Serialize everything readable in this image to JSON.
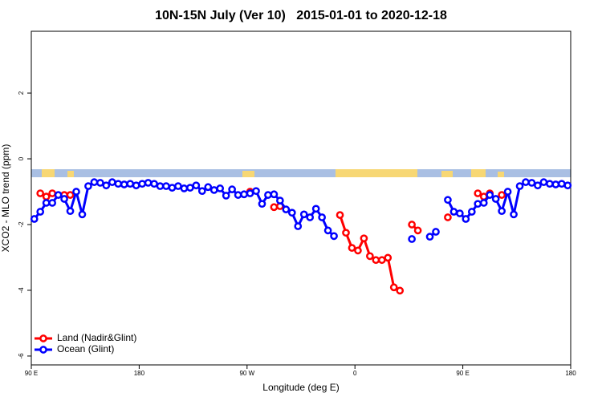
{
  "chart_data": {
    "type": "line",
    "title": "10N-15N July (Ver 10)   2015-01-01 to 2020-12-18",
    "x_label": "Longitude (deg E)",
    "y_label": "XCO2 - MLO trend (ppm)",
    "x": [
      92.5,
      97.5,
      102.5,
      107.5,
      112.5,
      117.5,
      122.5,
      127.5,
      132.5,
      137.5,
      142.5,
      147.5,
      152.5,
      157.5,
      162.5,
      167.5,
      172.5,
      177.5,
      182.5,
      187.5,
      192.5,
      197.5,
      202.5,
      207.5,
      212.5,
      217.5,
      222.5,
      227.5,
      232.5,
      237.5,
      242.5,
      247.5,
      252.5,
      257.5,
      262.5,
      267.5,
      272.5,
      277.5,
      282.5,
      287.5,
      292.5,
      297.5,
      302.5,
      307.5,
      312.5,
      317.5,
      322.5,
      327.5,
      332.5,
      337.5,
      342.5,
      347.5,
      352.5,
      357.5,
      362.5,
      367.5,
      372.5,
      377.5,
      382.5,
      387.5,
      392.5,
      397.5,
      402.5,
      407.5,
      412.5,
      417.5,
      422.5,
      427.5,
      432.5,
      437.5,
      442.5,
      447.5,
      452.5,
      457.5,
      462.5,
      467.5,
      472.5,
      477.5,
      482.5,
      487.5,
      492.5,
      497.5,
      502.5,
      507.5,
      512.5,
      517.5,
      522.5,
      527.5,
      532.5,
      537.5
    ],
    "series": [
      {
        "name": "Land (Nadir&Glint)",
        "color": "#ff0000",
        "values": [
          null,
          -1.05,
          -1.15,
          -1.05,
          null,
          -1.1,
          -1.1,
          null,
          null,
          null,
          null,
          null,
          null,
          null,
          null,
          null,
          null,
          null,
          null,
          null,
          null,
          null,
          null,
          null,
          null,
          null,
          null,
          null,
          null,
          null,
          null,
          null,
          null,
          null,
          null,
          null,
          -1.0,
          null,
          null,
          null,
          -1.47,
          -1.44,
          null,
          null,
          null,
          null,
          null,
          null,
          null,
          null,
          null,
          -1.71,
          -2.25,
          -2.71,
          -2.79,
          -2.42,
          -2.96,
          -3.08,
          -3.08,
          -3.01,
          -3.91,
          -4.01,
          null,
          -2.0,
          -2.18,
          null,
          null,
          null,
          null,
          -1.78,
          null,
          null,
          null,
          null,
          -1.05,
          -1.15,
          -1.05,
          null,
          -1.1,
          null,
          null,
          null,
          null,
          null,
          null,
          null,
          null,
          null,
          null,
          null
        ]
      },
      {
        "name": "Ocean (Glint)",
        "color": "#0000ff",
        "values": [
          -1.83,
          -1.61,
          -1.34,
          -1.34,
          -1.1,
          -1.22,
          -1.59,
          -1.0,
          -1.69,
          -0.83,
          -0.71,
          -0.73,
          -0.81,
          -0.71,
          -0.76,
          -0.78,
          -0.76,
          -0.81,
          -0.76,
          -0.73,
          -0.76,
          -0.83,
          -0.83,
          -0.88,
          -0.83,
          -0.9,
          -0.88,
          -0.81,
          -0.98,
          -0.86,
          -0.95,
          -0.9,
          -1.12,
          -0.93,
          -1.1,
          -1.08,
          -1.05,
          -0.98,
          -1.37,
          -1.1,
          -1.08,
          -1.27,
          -1.54,
          -1.64,
          -2.05,
          -1.69,
          -1.78,
          -1.52,
          -1.78,
          -2.18,
          -2.35,
          null,
          null,
          null,
          null,
          null,
          null,
          null,
          null,
          null,
          null,
          null,
          null,
          -2.44,
          null,
          null,
          -2.37,
          -2.22,
          null,
          -1.25,
          -1.61,
          -1.66,
          -1.83,
          -1.61,
          -1.37,
          -1.34,
          -1.1,
          -1.22,
          -1.59,
          -1.0,
          -1.69,
          -0.83,
          -0.71,
          -0.73,
          -0.81,
          -0.71,
          -0.76,
          -0.78,
          -0.76,
          -0.81
        ]
      }
    ],
    "xlim": [
      90,
      540
    ],
    "xticks": [
      {
        "value": 90,
        "label": "90 E"
      },
      180,
      {
        "value": 270,
        "label": "90 W"
      },
      {
        "value": 360,
        "label": "0"
      },
      {
        "value": 450,
        "label": "90 E"
      },
      {
        "value": 540,
        "label": "180"
      }
    ],
    "ylim": [
      -6.27,
      3.88
    ],
    "yticks": [
      -6,
      -4,
      -2,
      0,
      2
    ],
    "legend": "bottom-left"
  }
}
